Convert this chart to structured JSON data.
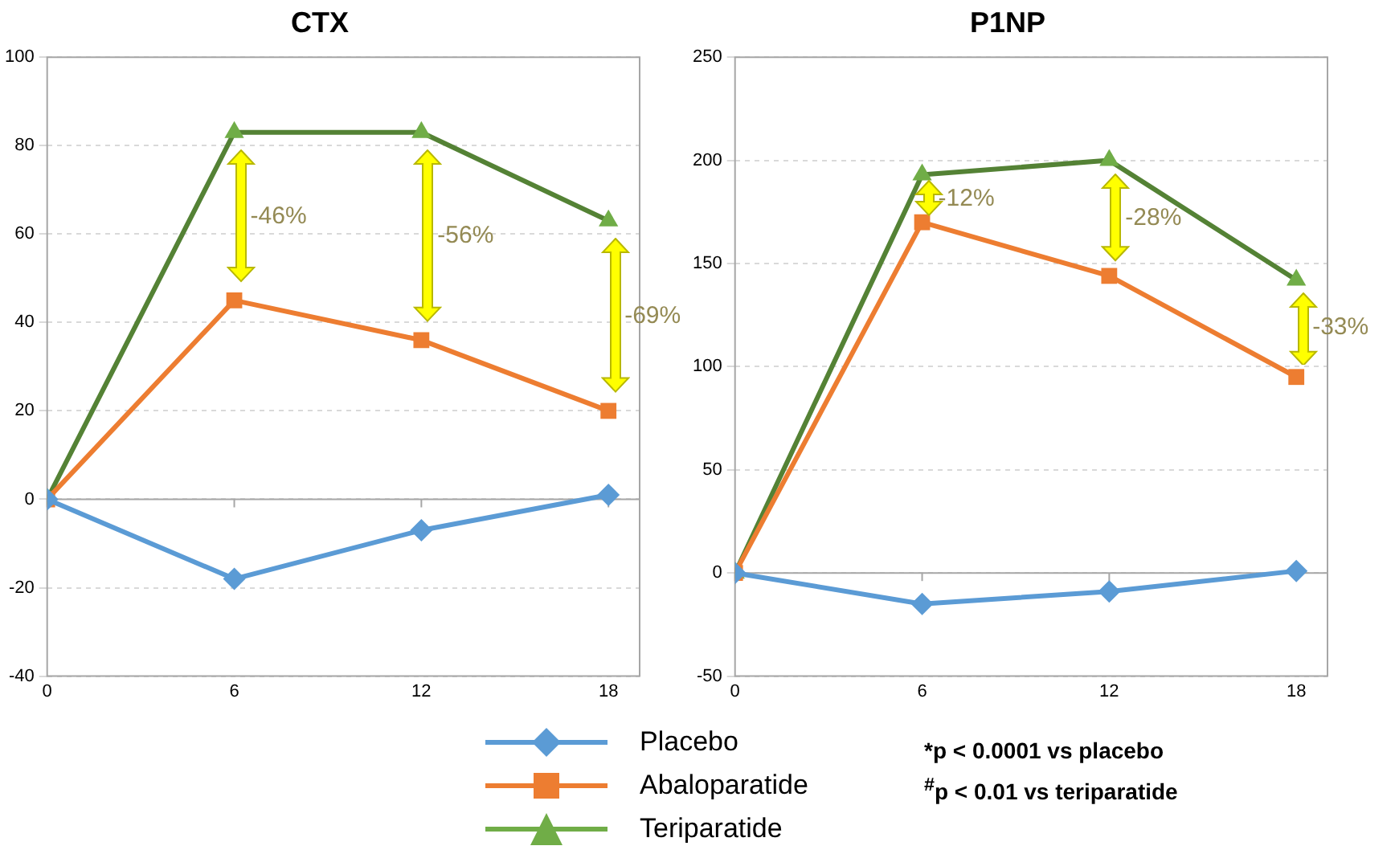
{
  "chart_data": [
    {
      "type": "line",
      "title": "CTX",
      "x": [
        0,
        6,
        12,
        18
      ],
      "xlim": [
        0,
        19
      ],
      "xticks": [
        0,
        6,
        12,
        18
      ],
      "ylim": [
        -40,
        100
      ],
      "yticks": [
        -40,
        -20,
        0,
        20,
        40,
        60,
        80,
        100
      ],
      "grid": "y",
      "legend": "bottom",
      "series": [
        {
          "name": "Placebo",
          "color": "#5b9bd5",
          "marker": "diamond",
          "values": [
            0,
            -18,
            -7,
            1
          ]
        },
        {
          "name": "Abaloparatide",
          "color": "#ed7d31",
          "marker": "square",
          "values": [
            0,
            45,
            36,
            20
          ]
        },
        {
          "name": "Teriparatide",
          "color": "#548235",
          "marker": "triangle",
          "values": [
            0,
            83,
            83,
            63
          ]
        }
      ],
      "annotations": [
        "-46%",
        "-56%",
        "-69%"
      ]
    },
    {
      "type": "line",
      "title": "P1NP",
      "x": [
        0,
        6,
        12,
        18
      ],
      "xlim": [
        0,
        19
      ],
      "xticks": [
        0,
        6,
        12,
        18
      ],
      "ylim": [
        -50,
        250
      ],
      "yticks": [
        -50,
        0,
        50,
        100,
        150,
        200,
        250
      ],
      "grid": "y",
      "series": [
        {
          "color": "#5b9bd5",
          "marker": "diamond",
          "values": [
            0,
            -15,
            -9,
            1
          ]
        },
        {
          "color": "#ed7d31",
          "marker": "square",
          "values": [
            0,
            170,
            144,
            95
          ]
        },
        {
          "color": "#548235",
          "marker": "triangle",
          "values": [
            0,
            193,
            200,
            142
          ]
        }
      ],
      "annotations": [
        "-12%",
        "-28%",
        "-33%",
        "*p < 0.0001 vs placebo",
        "$^{#}$p < 0.01 vs teriparatide"
      ]
    }
  ]
}
